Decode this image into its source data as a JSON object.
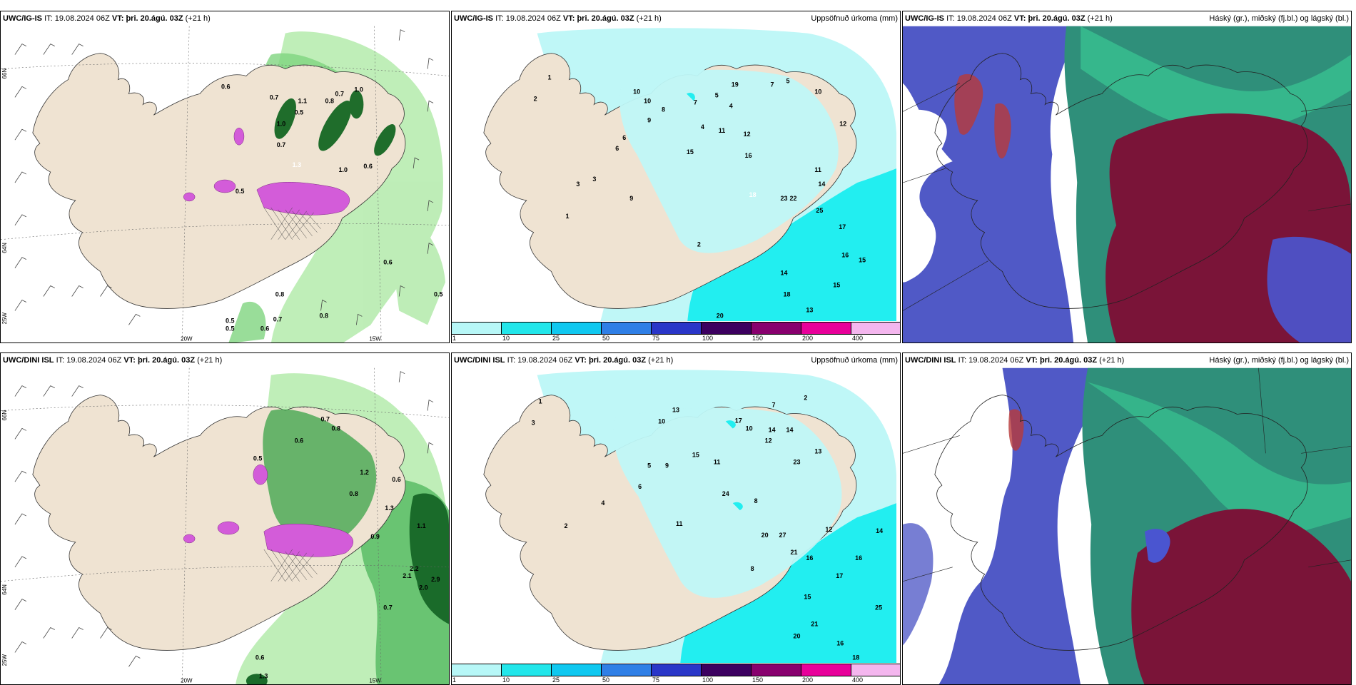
{
  "rows": [
    {
      "panels": [
        {
          "model": "UWC/IG-IS",
          "it_label": "IT:",
          "it_value": "19.08.2024 06Z",
          "vt_label": "VT:",
          "vt_value": "þri. 20.ágú. 03Z",
          "lead": "(+21 h)",
          "right_title": ""
        },
        {
          "model": "UWC/IG-IS",
          "it_label": "IT:",
          "it_value": "19.08.2024 06Z",
          "vt_label": "VT:",
          "vt_value": "þri. 20.ágú. 03Z",
          "lead": "(+21 h)",
          "right_title": "Uppsöfnuð úrkoma (mm)"
        },
        {
          "model": "UWC/IG-IS",
          "it_label": "IT:",
          "it_value": "19.08.2024 06Z",
          "vt_label": "VT:",
          "vt_value": "þri. 20.ágú. 03Z",
          "lead": "(+21 h)",
          "right_title": "Háský (gr.), miðský (fj.bl.) og lágský (bl.)"
        }
      ]
    },
    {
      "panels": [
        {
          "model": "UWC/DINI ISL",
          "it_label": "IT:",
          "it_value": "19.08.2024 06Z",
          "vt_label": "VT:",
          "vt_value": "þri. 20.ágú. 03Z",
          "lead": "(+21 h)",
          "right_title": ""
        },
        {
          "model": "UWC/DINI ISL",
          "it_label": "IT:",
          "it_value": "19.08.2024 06Z",
          "vt_label": "VT:",
          "vt_value": "þri. 20.ágú. 03Z",
          "lead": "(+21 h)",
          "right_title": "Uppsöfnuð úrkoma (mm)"
        },
        {
          "model": "UWC/DINI ISL",
          "it_label": "IT:",
          "it_value": "19.08.2024 06Z",
          "vt_label": "VT:",
          "vt_value": "þri. 20.ágú. 03Z",
          "lead": "(+21 h)",
          "right_title": "Háský (gr.), miðský (fj.bl.) og lágský (bl.)"
        }
      ]
    }
  ],
  "axis_labels": {
    "lon_20": "20W",
    "lon_15": "15W",
    "lat_66": "66N",
    "lat_64": "64N",
    "lon_25": "25W"
  },
  "precip_legend": {
    "ticks": [
      "1",
      "10",
      "25",
      "50",
      "75",
      "100",
      "150",
      "200",
      "400"
    ],
    "colors": [
      "#b7f7f7",
      "#22e6ea",
      "#10c8f0",
      "#2f7fe6",
      "#2a36c8",
      "#3c0060",
      "#88006e",
      "#e8009a",
      "#f4b6ee"
    ]
  },
  "map_colors": {
    "land": "#efe3d2",
    "precip_light": "#bff7f7",
    "precip_mid": "#22eef0",
    "wind_green": "#a8e6a0",
    "dark_green": "#1a6b2a",
    "magenta": "#d65ad6",
    "cloud_high": "#4fd6a0",
    "cloud_mid": "#3a42b8",
    "cloud_low": "#7a1535"
  },
  "wind_labels_top": [
    "0.6",
    "0.7",
    "1.1",
    "0.5",
    "0.8",
    "0.7",
    "1.0",
    "1.0",
    "0.7",
    "1.3",
    "0.6",
    "1.0",
    "0.5",
    "0.6",
    "0.8",
    "0.5",
    "0.5",
    "0.7",
    "0.6",
    "0.8",
    "0.5"
  ],
  "wind_labels_bottom": [
    "0.7",
    "0.8",
    "0.6",
    "1.2",
    "0.6",
    "0.8",
    "0.5",
    "0.9",
    "1.3",
    "1.1",
    "2.1",
    "2.2",
    "2.9",
    "2.0",
    "0.7",
    "0.6",
    "1.3"
  ],
  "precip_values_top": [
    "1",
    "2",
    "10",
    "10",
    "9",
    "8",
    "7",
    "5",
    "4",
    "12",
    "15",
    "11",
    "16",
    "18",
    "23",
    "22",
    "25",
    "17",
    "16",
    "15",
    "14",
    "18",
    "13",
    "15",
    "20",
    "2",
    "3",
    "6",
    "1",
    "9",
    "14",
    "10",
    "7",
    "12",
    "3",
    "4",
    "5",
    "6",
    "11",
    "19"
  ],
  "precip_values_bottom": [
    "1",
    "2",
    "10",
    "13",
    "15",
    "14",
    "17",
    "11",
    "12",
    "8",
    "20",
    "27",
    "21",
    "16",
    "17",
    "14",
    "16",
    "25",
    "15",
    "21",
    "20",
    "16",
    "18",
    "12",
    "5",
    "3",
    "6",
    "9",
    "4",
    "24",
    "13",
    "7",
    "2",
    "11",
    "8",
    "10",
    "14",
    "23"
  ]
}
